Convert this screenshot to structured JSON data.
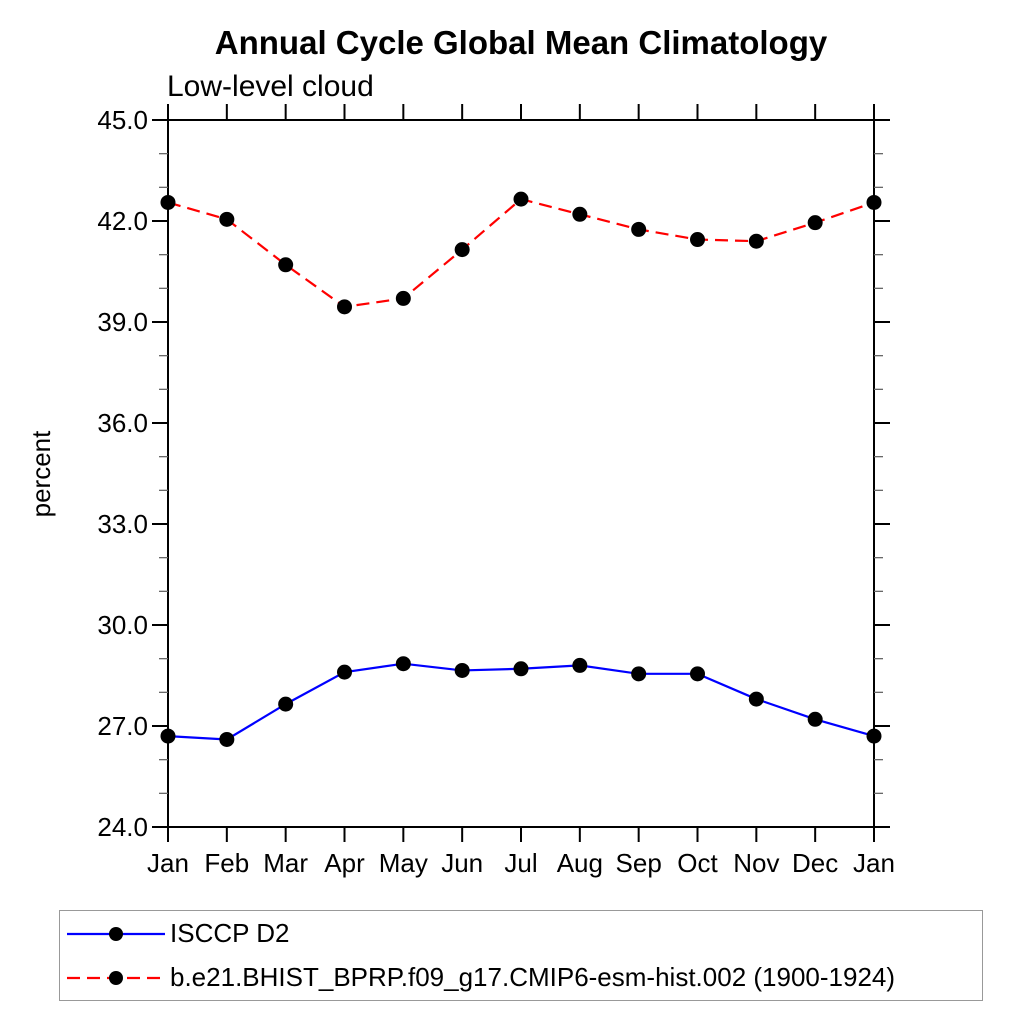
{
  "header": {
    "title": "Annual Cycle Global Mean Climatology",
    "subtitle": "Low-level cloud"
  },
  "chart_data": {
    "type": "line",
    "title": "Annual Cycle Global Mean Climatology",
    "subtitle": "Low-level cloud",
    "xlabel": "",
    "ylabel": "percent",
    "categories": [
      "Jan",
      "Feb",
      "Mar",
      "Apr",
      "May",
      "Jun",
      "Jul",
      "Aug",
      "Sep",
      "Oct",
      "Nov",
      "Dec",
      "Jan"
    ],
    "series": [
      {
        "name": "ISCCP D2",
        "color": "#0000ff",
        "line_style": "solid",
        "marker": "filled-circle",
        "values": [
          26.7,
          26.6,
          27.65,
          28.6,
          28.85,
          28.65,
          28.7,
          28.8,
          28.55,
          28.55,
          27.8,
          27.2,
          26.7
        ]
      },
      {
        "name": "b.e21.BHIST_BPRP.f09_g17.CMIP6-esm-hist.002 (1900-1924)",
        "color": "#ff0000",
        "line_style": "dashed",
        "marker": "filled-circle",
        "values": [
          42.55,
          42.05,
          40.7,
          39.45,
          39.7,
          41.15,
          42.65,
          42.2,
          41.75,
          41.45,
          41.4,
          41.95,
          42.55
        ]
      }
    ],
    "ylim": [
      24.0,
      45.0
    ],
    "ytick_major": 3.0,
    "ytick_minor": 1.0,
    "ytick_labels": [
      "24.0",
      "27.0",
      "30.0",
      "33.0",
      "36.0",
      "39.0",
      "42.0",
      "45.0"
    ],
    "ytick_format_decimals": 1,
    "grid": false,
    "legend_position": "bottom-left-box",
    "marker_color": "#000000",
    "axis_color": "#000000",
    "minor_tick_color": "#666666"
  }
}
